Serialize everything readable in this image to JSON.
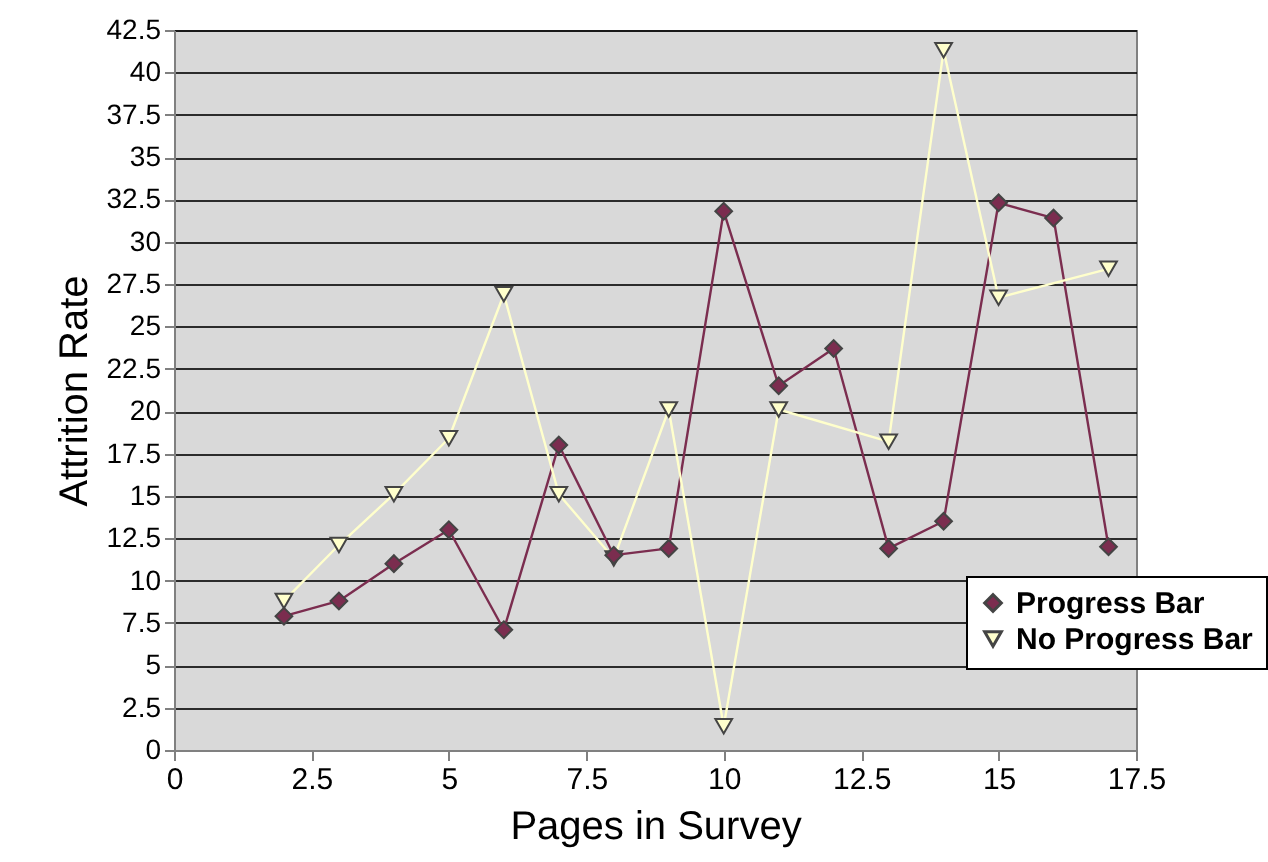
{
  "chart_data": {
    "type": "line",
    "xlabel": "Pages in Survey",
    "ylabel": "Attrition Rate",
    "xlim": [
      0,
      17.5
    ],
    "xticks": [
      0,
      2.5,
      5,
      7.5,
      10,
      12.5,
      15,
      17.5
    ],
    "ylim": [
      0,
      42.5
    ],
    "yticks": [
      0,
      2.5,
      5,
      7.5,
      10,
      12.5,
      15,
      17.5,
      20,
      22.5,
      25,
      27.5,
      30,
      32.5,
      35,
      37.5,
      40,
      42.5
    ],
    "grid": "y",
    "legend": "bottom right",
    "series": [
      {
        "name": "Progress Bar",
        "color": "#7b2d4f",
        "marker": "diamond",
        "x": [
          2,
          3,
          4,
          5,
          6,
          7,
          8,
          9,
          10,
          11,
          12,
          13,
          14,
          15,
          16,
          17
        ],
        "values": [
          7.9,
          8.8,
          11,
          13,
          7.1,
          18,
          11.5,
          11.9,
          31.8,
          21.5,
          23.7,
          11.9,
          13.5,
          32.3,
          31.4,
          12
        ]
      },
      {
        "name": "No Progress Bar",
        "color": "#ffffcc",
        "marker": "triangle",
        "x": [
          2,
          3,
          4,
          5,
          6,
          7,
          8,
          9,
          10,
          11,
          13,
          14,
          15,
          17
        ],
        "values": [
          8.8,
          12.1,
          15.1,
          18.4,
          26.9,
          15.1,
          11.3,
          20.1,
          1.4,
          20.1,
          18.2,
          41.3,
          26.7,
          28.4
        ]
      }
    ]
  }
}
